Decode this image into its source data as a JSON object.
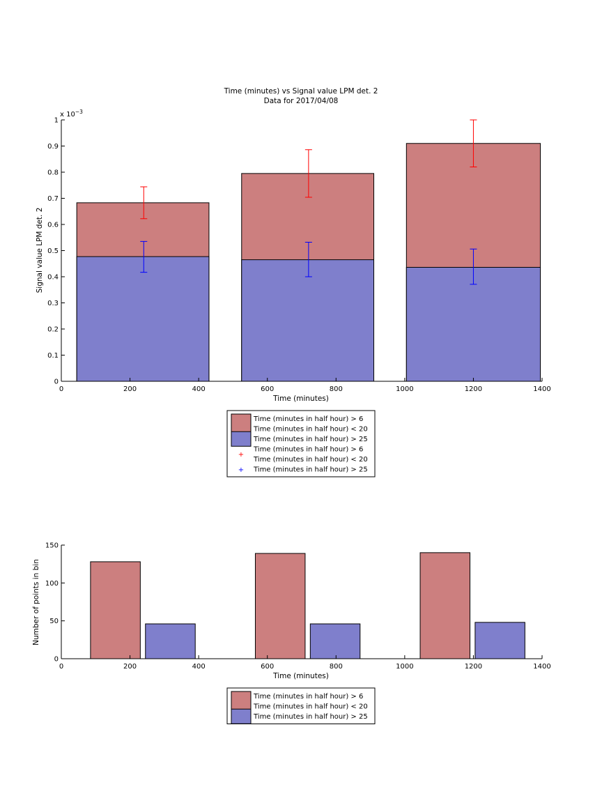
{
  "colors": {
    "red_fill": "#cc7f7f",
    "blue_fill": "#7f7fcc",
    "red_err": "#ff0000",
    "blue_err": "#0000ff"
  },
  "chart_data": [
    {
      "type": "bar",
      "title": "Time (minutes) vs Signal value LPM det. 2",
      "subtitle": "Data for 2017/04/08",
      "xlabel": "Time (minutes)",
      "ylabel": "Signal value LPM det. 2",
      "exponent_label": "x 10",
      "exponent_power": "−3",
      "xlim": [
        0,
        1400
      ],
      "ylim": [
        0,
        1.0
      ],
      "xticks": [
        "0",
        "200",
        "400",
        "600",
        "800",
        "1000",
        "1200",
        "1400"
      ],
      "yticks": [
        "0",
        "0.1",
        "0.2",
        "0.3",
        "0.4",
        "0.5",
        "0.6",
        "0.7",
        "0.8",
        "0.9",
        "1"
      ],
      "bars": {
        "x_start": [
          45,
          525,
          1005
        ],
        "x_end": [
          430,
          910,
          1395
        ],
        "red_values": [
          0.683,
          0.795,
          0.91
        ],
        "blue_values": [
          0.477,
          0.465,
          0.436
        ]
      },
      "errorbars": {
        "x": [
          240,
          720,
          1200
        ],
        "red_low": [
          0.622,
          0.704,
          0.82
        ],
        "red_high": [
          0.744,
          0.886,
          1.0
        ],
        "blue_low": [
          0.417,
          0.4,
          0.371
        ],
        "blue_high": [
          0.535,
          0.532,
          0.506
        ]
      },
      "legend": {
        "items": [
          {
            "kind": "patch",
            "color": "red",
            "lines": [
              "Time (minutes in half hour) > 6",
              "Time (minutes in half hour) < 20"
            ]
          },
          {
            "kind": "patch",
            "color": "blue",
            "lines": [
              "Time (minutes in half hour) > 25"
            ]
          },
          {
            "kind": "marker",
            "color": "red",
            "lines": [
              "Time (minutes in half hour) > 6",
              "Time (minutes in half hour) < 20"
            ]
          },
          {
            "kind": "marker",
            "color": "blue",
            "lines": [
              "Time (minutes in half hour) > 25"
            ]
          }
        ]
      }
    },
    {
      "type": "bar",
      "xlabel": "Time (minutes)",
      "ylabel": "Number of points in bin",
      "xlim": [
        0,
        1400
      ],
      "ylim": [
        0,
        150
      ],
      "xticks": [
        "0",
        "200",
        "400",
        "600",
        "800",
        "1000",
        "1200",
        "1400"
      ],
      "yticks": [
        "0",
        "50",
        "100",
        "150"
      ],
      "bars": [
        {
          "color": "red",
          "x_start": 85,
          "x_end": 230,
          "value": 128
        },
        {
          "color": "blue",
          "x_start": 245,
          "x_end": 390,
          "value": 46
        },
        {
          "color": "red",
          "x_start": 565,
          "x_end": 710,
          "value": 139
        },
        {
          "color": "blue",
          "x_start": 725,
          "x_end": 870,
          "value": 46
        },
        {
          "color": "red",
          "x_start": 1045,
          "x_end": 1190,
          "value": 140
        },
        {
          "color": "blue",
          "x_start": 1205,
          "x_end": 1350,
          "value": 48
        }
      ],
      "legend": {
        "items": [
          {
            "kind": "patch",
            "color": "red",
            "lines": [
              "Time (minutes in half hour) > 6",
              "Time (minutes in half hour) < 20"
            ]
          },
          {
            "kind": "patch",
            "color": "blue",
            "lines": [
              "Time (minutes in half hour) > 25"
            ]
          }
        ]
      }
    }
  ]
}
